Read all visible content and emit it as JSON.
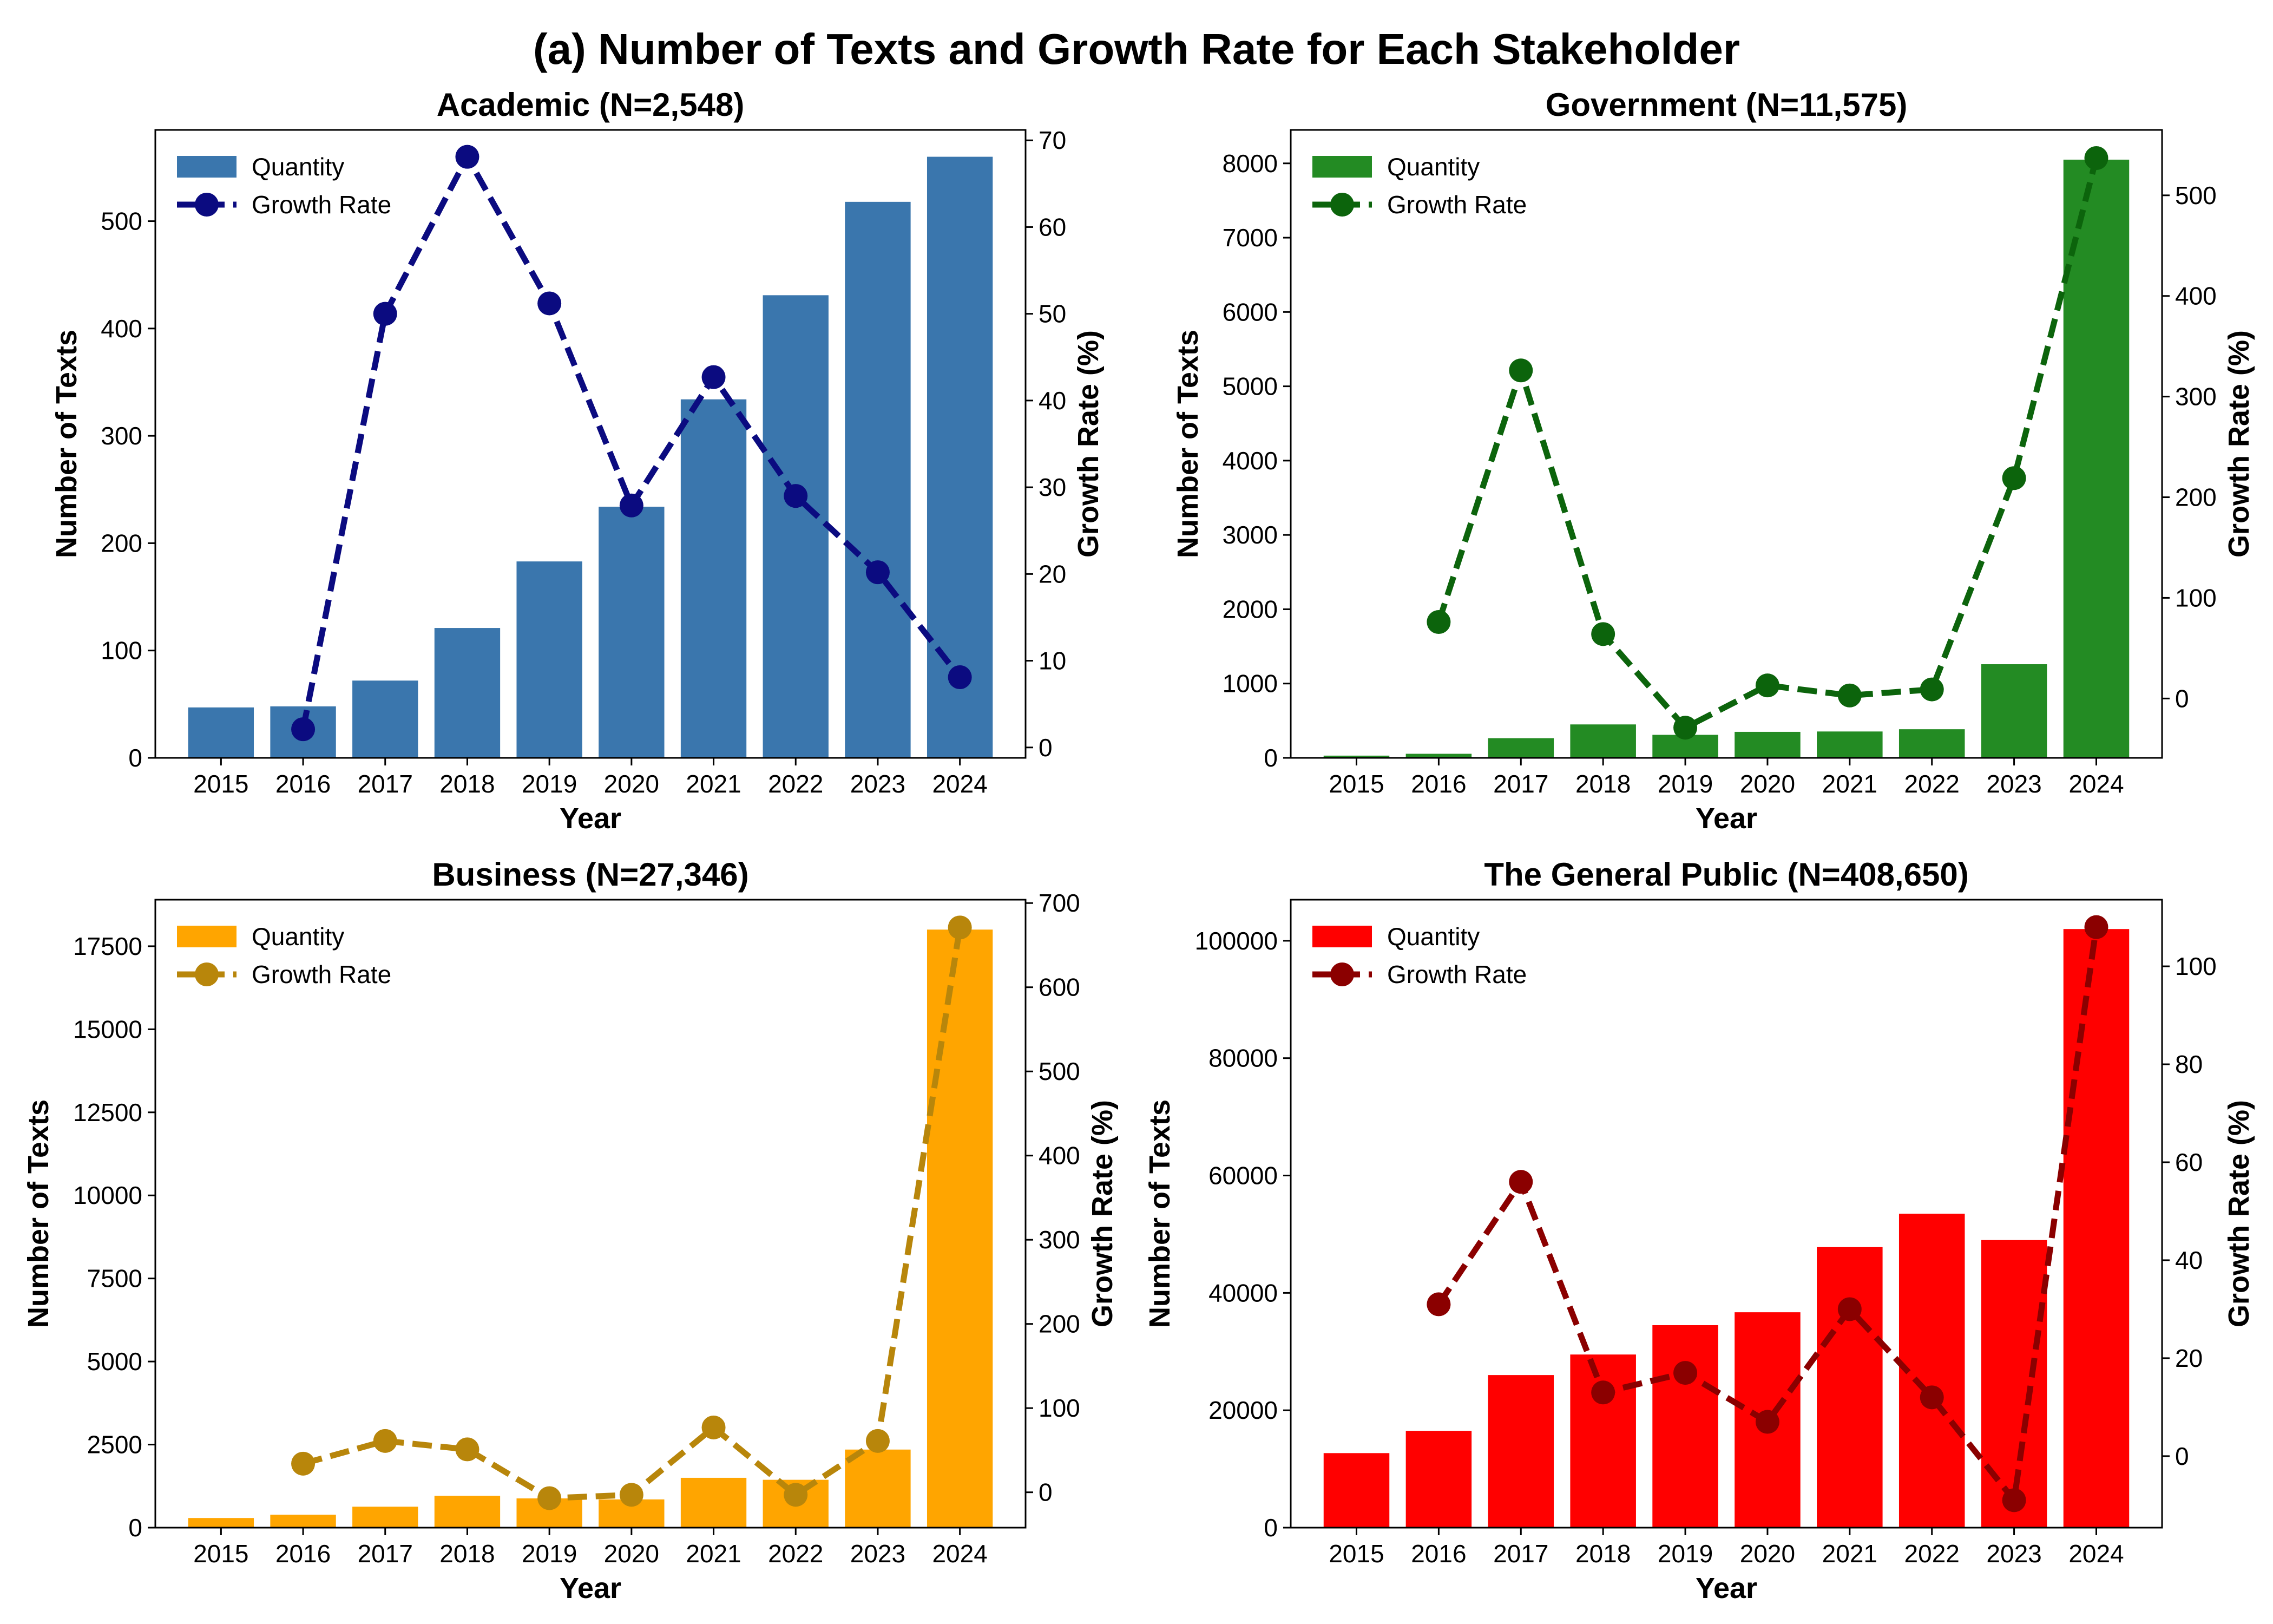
{
  "figure": {
    "title": "(a) Number of Texts and Growth Rate for Each Stakeholder"
  },
  "chart_data": [
    {
      "type": "bar",
      "title": "Academic (N=2,548)",
      "xlabel": "Year",
      "ylabel": "Number of Texts",
      "y2label": "Growth Rate (%)",
      "categories": [
        "2015",
        "2016",
        "2017",
        "2018",
        "2019",
        "2020",
        "2021",
        "2022",
        "2023",
        "2024"
      ],
      "ylim": [
        0,
        585
      ],
      "yticks": [
        0,
        100,
        200,
        300,
        400,
        500
      ],
      "y2lim": [
        -1.2,
        71.2
      ],
      "y2ticks": [
        0,
        10,
        20,
        30,
        40,
        50,
        60,
        70
      ],
      "legend_position": "upper left",
      "bar_color": "#3a76ad",
      "line_color": "#0b0b80",
      "series": [
        {
          "name": "Quantity",
          "kind": "bar",
          "values": [
            47,
            48,
            72,
            121,
            183,
            234,
            334,
            431,
            518,
            560
          ]
        },
        {
          "name": "Growth Rate",
          "kind": "line",
          "axis": "right",
          "values": [
            null,
            2.1,
            50.0,
            68.1,
            51.2,
            27.9,
            42.7,
            29.0,
            20.2,
            8.1
          ]
        }
      ]
    },
    {
      "type": "bar",
      "title": "Government (N=11,575)",
      "xlabel": "Year",
      "ylabel": "Number of Texts",
      "y2label": "Growth Rate (%)",
      "categories": [
        "2015",
        "2016",
        "2017",
        "2018",
        "2019",
        "2020",
        "2021",
        "2022",
        "2023",
        "2024"
      ],
      "ylim": [
        0,
        8450
      ],
      "yticks": [
        0,
        1000,
        2000,
        3000,
        4000,
        5000,
        6000,
        7000,
        8000
      ],
      "y2lim": [
        -59,
        565
      ],
      "y2ticks": [
        0,
        100,
        200,
        300,
        400,
        500
      ],
      "legend_position": "upper left",
      "bar_color": "#238b23",
      "line_color": "#0c640c",
      "series": [
        {
          "name": "Quantity",
          "kind": "bar",
          "values": [
            30,
            55,
            265,
            450,
            310,
            350,
            355,
            385,
            1260,
            8050
          ]
        },
        {
          "name": "Growth Rate",
          "kind": "line",
          "axis": "right",
          "values": [
            null,
            76,
            326,
            64,
            -29,
            13,
            3,
            9,
            219,
            537
          ]
        }
      ]
    },
    {
      "type": "bar",
      "title": "Business (N=27,346)",
      "xlabel": "Year",
      "ylabel": "Number of Texts",
      "y2label": "Growth Rate (%)",
      "categories": [
        "2015",
        "2016",
        "2017",
        "2018",
        "2019",
        "2020",
        "2021",
        "2022",
        "2023",
        "2024"
      ],
      "ylim": [
        0,
        18900
      ],
      "yticks": [
        0,
        2500,
        5000,
        7500,
        10000,
        12500,
        15000,
        17500
      ],
      "y2lim": [
        -42,
        704
      ],
      "y2ticks": [
        0,
        100,
        200,
        300,
        400,
        500,
        600,
        700
      ],
      "legend_position": "upper left",
      "bar_color": "#ffa500",
      "line_color": "#b8860b",
      "series": [
        {
          "name": "Quantity",
          "kind": "bar",
          "values": [
            290,
            390,
            630,
            960,
            880,
            850,
            1500,
            1440,
            2350,
            18000
          ]
        },
        {
          "name": "Growth Rate",
          "kind": "line",
          "axis": "right",
          "values": [
            null,
            34,
            61,
            51,
            -7,
            -3,
            77,
            -3,
            61,
            671
          ]
        }
      ]
    },
    {
      "type": "bar",
      "title": "The General Public (N=408,650)",
      "xlabel": "Year",
      "ylabel": "Number of Texts",
      "y2label": "Growth Rate (%)",
      "categories": [
        "2015",
        "2016",
        "2017",
        "2018",
        "2019",
        "2020",
        "2021",
        "2022",
        "2023",
        "2024"
      ],
      "ylim": [
        0,
        107000
      ],
      "yticks": [
        0,
        20000,
        40000,
        60000,
        80000,
        100000
      ],
      "y2lim": [
        -14.6,
        113.6
      ],
      "y2ticks": [
        0,
        20,
        40,
        60,
        80,
        100
      ],
      "legend_position": "upper left",
      "bar_color": "#ff0000",
      "line_color": "#8b0000",
      "series": [
        {
          "name": "Quantity",
          "kind": "bar",
          "values": [
            12700,
            16500,
            26000,
            29500,
            34500,
            36700,
            47800,
            53500,
            49000,
            102000
          ]
        },
        {
          "name": "Growth Rate",
          "kind": "line",
          "axis": "right",
          "values": [
            null,
            31,
            56,
            13,
            17,
            7,
            30,
            12,
            -9,
            108
          ]
        }
      ]
    }
  ]
}
